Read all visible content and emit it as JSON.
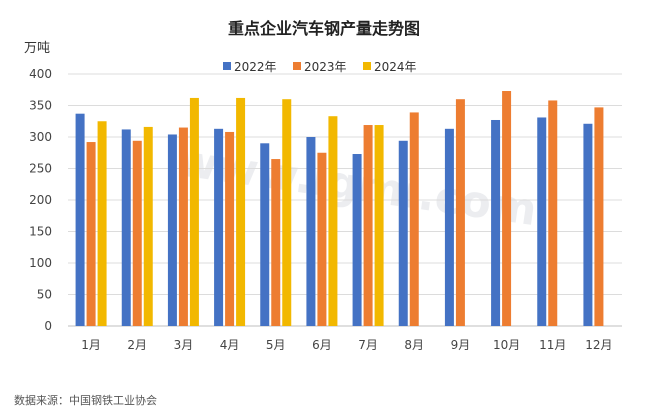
{
  "chart_data": {
    "type": "bar",
    "title": "重点企业汽车钢产量走势图",
    "ylabel": "万吨",
    "xlabel": "",
    "ylim": [
      0,
      400
    ],
    "yticks": [
      0,
      50,
      100,
      150,
      200,
      250,
      300,
      350,
      400
    ],
    "grid": true,
    "legend_position": "top",
    "categories": [
      "1月",
      "2月",
      "3月",
      "4月",
      "5月",
      "6月",
      "7月",
      "8月",
      "9月",
      "10月",
      "11月",
      "12月"
    ],
    "series": [
      {
        "name": "2022年",
        "color": "#4472C4",
        "values": [
          337,
          312,
          304,
          313,
          290,
          300,
          273,
          294,
          313,
          327,
          331,
          321
        ]
      },
      {
        "name": "2023年",
        "color": "#ED7D31",
        "values": [
          292,
          294,
          315,
          308,
          265,
          275,
          319,
          339,
          360,
          373,
          358,
          347
        ]
      },
      {
        "name": "2024年",
        "color": "#F2B800",
        "values": [
          325,
          316,
          362,
          362,
          360,
          333,
          319,
          null,
          null,
          null,
          null,
          null
        ]
      }
    ],
    "source": "数据来源：中国钢铁工业协会"
  },
  "watermark": "www.lgmi.com"
}
